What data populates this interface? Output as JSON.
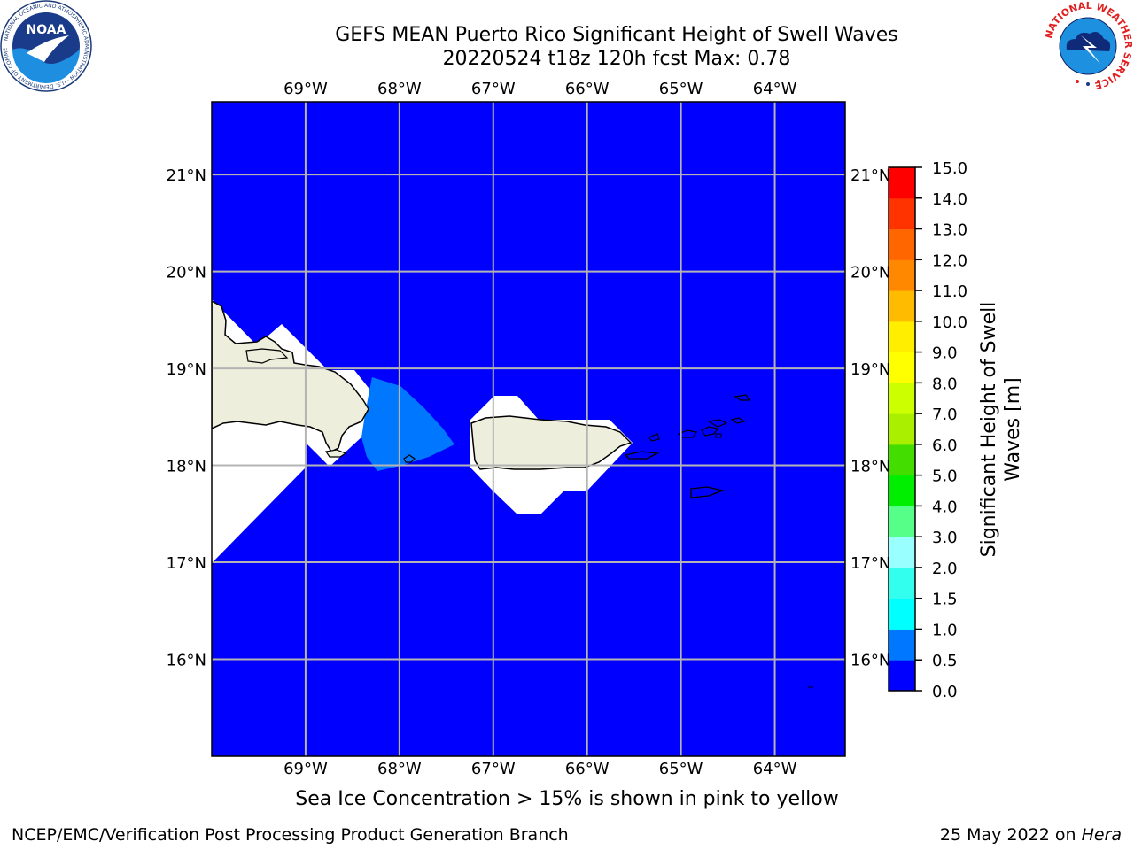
{
  "header": {
    "title_line1": "GEFS MEAN Puerto Rico Significant Height of Swell Waves",
    "title_line2": "20220524 t18z 120h fcst   Max: 0.78"
  },
  "map": {
    "lon_range": [
      -70.0,
      -63.25
    ],
    "lat_range": [
      15.0,
      21.75
    ],
    "ocean_color": "#0000ff",
    "land_color": "#eeeedd",
    "lon_ticks": [
      {
        "value": -69,
        "label": "69°W"
      },
      {
        "value": -68,
        "label": "68°W"
      },
      {
        "value": -67,
        "label": "67°W"
      },
      {
        "value": -66,
        "label": "66°W"
      },
      {
        "value": -65,
        "label": "65°W"
      },
      {
        "value": -64,
        "label": "64°W"
      }
    ],
    "lat_ticks": [
      {
        "value": 21,
        "label": "21°N"
      },
      {
        "value": 20,
        "label": "20°N"
      },
      {
        "value": 19,
        "label": "19°N"
      },
      {
        "value": 18,
        "label": "18°N"
      },
      {
        "value": 17,
        "label": "17°N"
      },
      {
        "value": 16,
        "label": "16°N"
      }
    ]
  },
  "colorbar": {
    "label": "Significant Height of Swell Waves [m]",
    "levels": [
      0.0,
      0.5,
      1.0,
      1.5,
      2.0,
      3.0,
      4.0,
      5.0,
      6.0,
      7.0,
      8.0,
      9.0,
      10.0,
      11.0,
      12.0,
      13.0,
      14.0,
      15.0
    ],
    "level_labels": [
      "0.0",
      "0.5",
      "1.0",
      "1.5",
      "2.0",
      "3.0",
      "4.0",
      "5.0",
      "6.0",
      "7.0",
      "8.0",
      "9.0",
      "10.0",
      "11.0",
      "12.0",
      "13.0",
      "14.0",
      "15.0"
    ],
    "colors": [
      "#0000ff",
      "#0077ff",
      "#00ffff",
      "#33ffee",
      "#99ffff",
      "#55ff88",
      "#00ee00",
      "#44dd00",
      "#aaee00",
      "#ccff00",
      "#ffff00",
      "#ffee00",
      "#ffbb00",
      "#ff8800",
      "#ff6600",
      "#ff3300",
      "#ff0000"
    ]
  },
  "logos": {
    "noaa_text": "NOAA",
    "noaa_ring": "NATIONAL OCEANIC AND ATMOSPHERIC ADMINISTRATION · U.S. DEPARTMENT OF COMMERCE",
    "nws_ring": "NATIONAL WEATHER SERVICE"
  },
  "footer": {
    "ice_note": "Sea Ice Concentration > 15% is shown in pink to yellow",
    "credit": "NCEP/EMC/Verification Post Processing Product Generation Branch",
    "date_prefix": "25 May 2022 on ",
    "date_host": "Hera"
  }
}
